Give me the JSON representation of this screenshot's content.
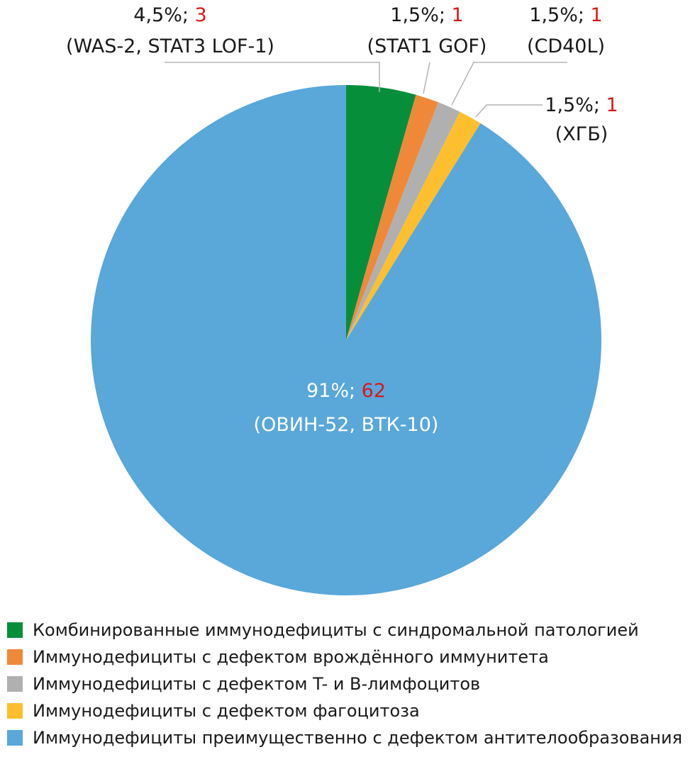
{
  "chart_data": {
    "type": "pie",
    "title": "",
    "slices": [
      {
        "name": "Комбинированные иммунодефициты с синдромальной патологией",
        "percent_label": "4,5%;",
        "count_label": "3",
        "detail": "(WAS-2, STAT3 LOF-1)",
        "percent": 4.5,
        "count": 3,
        "color": "#078e3b"
      },
      {
        "name": "Иммунодефициты с дефектом врождённого иммунитета",
        "percent_label": "1,5%;",
        "count_label": "1",
        "detail": "(STAT1 GOF)",
        "percent": 1.5,
        "count": 1,
        "color": "#f0883a"
      },
      {
        "name": "Иммунодефициты с дефектом T- и B-лимфоцитов",
        "percent_label": "1,5%;",
        "count_label": "1",
        "detail": "(CD40L)",
        "percent": 1.5,
        "count": 1,
        "color": "#b0b0b0"
      },
      {
        "name": "Иммунодефициты с дефектом фагоцитоза",
        "percent_label": "1,5%;",
        "count_label": "1",
        "detail": "(ХГБ)",
        "percent": 1.5,
        "count": 1,
        "color": "#fdbf2d"
      },
      {
        "name": "Иммунодефициты преимущественно с дефектом антителообразования",
        "percent_label": "91%;",
        "count_label": "62",
        "detail": "(ОВИН-52, ВТК-10)",
        "percent": 91,
        "count": 62,
        "color": "#5aa7da"
      }
    ],
    "count_color": "#d9191c",
    "legend_placement": "bottom"
  }
}
